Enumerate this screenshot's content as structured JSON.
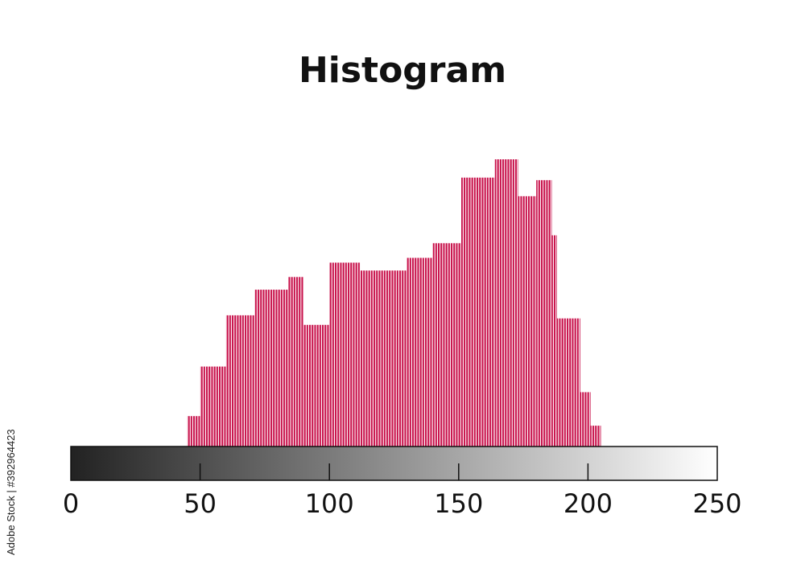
{
  "title": "Histogram",
  "side_text": "Adobe Stock | #392964423",
  "colors": {
    "bar": "#c8104a",
    "gradient_start": "#222222",
    "gradient_end": "#ffffff"
  },
  "chart_data": {
    "type": "bar",
    "title": "Histogram",
    "xlabel": "",
    "ylabel": "",
    "xlim": [
      0,
      250
    ],
    "ylim": [
      0,
      100
    ],
    "ticks": [
      {
        "value": 0,
        "label": "0"
      },
      {
        "value": 50,
        "label": "50"
      },
      {
        "value": 100,
        "label": "100"
      },
      {
        "value": 150,
        "label": "150"
      },
      {
        "value": 200,
        "label": "200"
      },
      {
        "value": 250,
        "label": "250"
      }
    ],
    "bins": [
      {
        "start": 45,
        "end": 50,
        "value": 10.8
      },
      {
        "start": 50,
        "end": 60,
        "value": 28.4
      },
      {
        "start": 60,
        "end": 71,
        "value": 46.6
      },
      {
        "start": 71,
        "end": 84,
        "value": 55.7
      },
      {
        "start": 84,
        "end": 90,
        "value": 60.2
      },
      {
        "start": 90,
        "end": 100,
        "value": 43.2
      },
      {
        "start": 100,
        "end": 112,
        "value": 65.3
      },
      {
        "start": 112,
        "end": 130,
        "value": 62.5
      },
      {
        "start": 130,
        "end": 140,
        "value": 67.0
      },
      {
        "start": 140,
        "end": 151,
        "value": 72.2
      },
      {
        "start": 151,
        "end": 164,
        "value": 95.5
      },
      {
        "start": 164,
        "end": 173,
        "value": 102.0
      },
      {
        "start": 173,
        "end": 180,
        "value": 88.9
      },
      {
        "start": 180,
        "end": 186,
        "value": 94.6
      },
      {
        "start": 186,
        "end": 188,
        "value": 75.0
      },
      {
        "start": 188,
        "end": 197,
        "value": 45.5
      },
      {
        "start": 197,
        "end": 201,
        "value": 19.3
      },
      {
        "start": 201,
        "end": 205,
        "value": 7.4
      }
    ],
    "grid": false,
    "legend": "none"
  }
}
